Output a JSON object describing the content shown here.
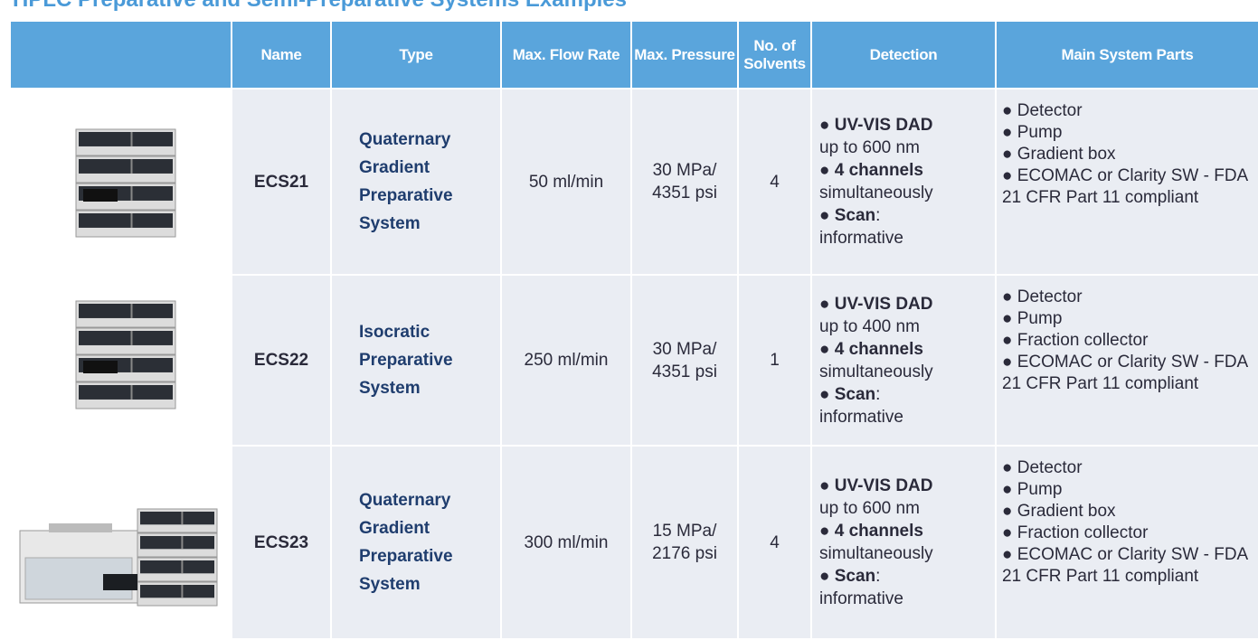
{
  "header": {
    "title": "HPLC Preparative and Semi-Preparative Systems Examples"
  },
  "table": {
    "columns": [
      "Name",
      "Type",
      "Max. Flow Rate",
      "Max. Pressure",
      "No. of Solvents",
      "Detection",
      "Main System Parts"
    ],
    "rows": [
      {
        "name": "ECS21",
        "type": "Quaternary Gradient Preparative System",
        "flow": "50 ml/min",
        "pressure": [
          "30 MPa/",
          "4351 psi"
        ],
        "solvents": "4",
        "detection": [
          {
            "key": "● UV-VIS DAD",
            "text": "up to 600 nm"
          },
          {
            "key": "● 4 channels",
            "text": "simultaneously"
          },
          {
            "key": "● Scan",
            "suffix": ":",
            "text": "informative"
          }
        ],
        "parts": [
          "● Detector",
          "● Pump",
          "● Gradient box",
          "● ECOMAC or Clarity SW - FDA 21 CFR Part 11 compliant"
        ]
      },
      {
        "name": "ECS22",
        "type": "Isocratic Preparative System",
        "flow": "250 ml/min",
        "pressure": [
          "30 MPa/",
          "4351 psi"
        ],
        "solvents": "1",
        "detection": [
          {
            "key": "● UV-VIS DAD",
            "text": "up to 400 nm"
          },
          {
            "key": "● 4 channels",
            "text": "simultaneously"
          },
          {
            "key": "● Scan",
            "suffix": ":",
            "text": "informative"
          }
        ],
        "parts": [
          "● Detector",
          "● Pump",
          "● Fraction collector",
          "● ECOMAC or Clarity SW - FDA 21 CFR Part 11 compliant"
        ]
      },
      {
        "name": "ECS23",
        "type": "Quaternary Gradient Preparative System",
        "flow": "300 ml/min",
        "pressure": [
          "15 MPa/",
          "2176 psi"
        ],
        "solvents": "4",
        "detection": [
          {
            "key": "● UV-VIS DAD",
            "text": "up to 600 nm"
          },
          {
            "key": "● 4 channels",
            "text": "simultaneously"
          },
          {
            "key": "● Scan",
            "suffix": ":",
            "text": "informative"
          }
        ],
        "parts": [
          "● Detector",
          "● Pump",
          "● Gradient box",
          "● Fraction collector",
          "● ECOMAC or Clarity SW - FDA 21 CFR Part 11 compliant"
        ]
      }
    ]
  }
}
